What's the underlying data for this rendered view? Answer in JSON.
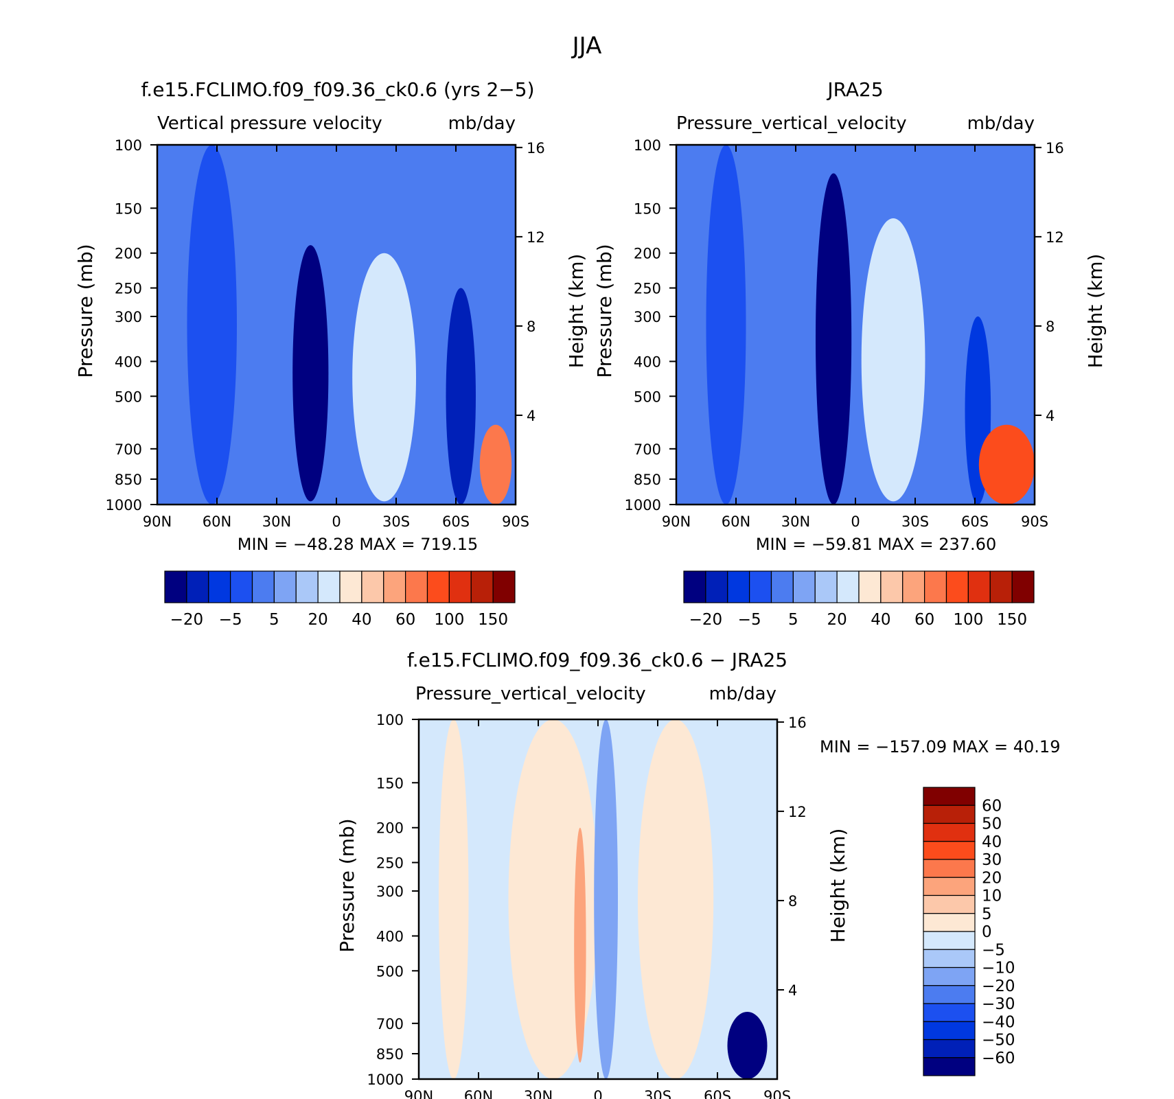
{
  "figure": {
    "season": "JJA"
  },
  "colors": {
    "main_scale": [
      "#000080",
      "#0020b8",
      "#0038e0",
      "#1c50f0",
      "#4c7cf0",
      "#7ea4f4",
      "#aac8f8",
      "#d4e8fc",
      "#fde8d4",
      "#fcc8aa",
      "#fca47c",
      "#fc784c",
      "#fc4c1c",
      "#e03010",
      "#b82008",
      "#800000"
    ],
    "diff_scale": [
      "#000080",
      "#0020b8",
      "#0038e0",
      "#1c50f0",
      "#4c7cf0",
      "#7ea4f4",
      "#aac8f8",
      "#d4e8fc",
      "#fde8d4",
      "#fcc8aa",
      "#fca47c",
      "#fc784c",
      "#fc4c1c",
      "#e03010",
      "#b82008",
      "#800000"
    ]
  },
  "chart_data": [
    {
      "type": "heatmap",
      "id": "model",
      "title": "f.e15.FCLIMO.f09_f09.36_ck0.6 (yrs 2-5)",
      "subtitle_left": "Vertical pressure velocity",
      "subtitle_right": "mb/day",
      "xlabel": "",
      "ylabel": "Pressure (mb)",
      "ylabel_right": "Height (km)",
      "x_ticks": [
        "90N",
        "60N",
        "30N",
        "0",
        "30S",
        "60S",
        "90S"
      ],
      "y_ticks": [
        100,
        150,
        200,
        250,
        300,
        400,
        500,
        700,
        850,
        1000
      ],
      "y_ticks_right": [
        16,
        12,
        8,
        4
      ],
      "y_scale": "log",
      "ylim": [
        1000,
        100
      ],
      "xlim": [
        90,
        -90
      ],
      "stats": "MIN = -48.28   MAX = 719.15",
      "colorbar_labels": [
        "-20",
        "-5",
        "5",
        "20",
        "40",
        "60",
        "100",
        "150"
      ],
      "features": [
        {
          "desc": "background",
          "level": 4
        },
        {
          "desc": "NH deeper upward band",
          "lat": [
            75,
            50
          ],
          "p": [
            100,
            1000
          ],
          "level": 3
        },
        {
          "desc": "ITCZ strong ascent",
          "lat": [
            22,
            4
          ],
          "p": [
            190,
            980
          ],
          "level": 0
        },
        {
          "desc": "SH subsidence core",
          "lat": [
            -8,
            -40
          ],
          "p": [
            200,
            980
          ],
          "level": 7
        },
        {
          "desc": "SH storm track ascent",
          "lat": [
            -55,
            -70
          ],
          "p": [
            250,
            1000
          ],
          "level": 1
        },
        {
          "desc": "Antarctic high values",
          "lat": [
            -72,
            -88
          ],
          "p": [
            600,
            1000
          ],
          "level": 11
        }
      ]
    },
    {
      "type": "heatmap",
      "id": "obs",
      "title": "JRA25",
      "subtitle_left": "Pressure_vertical_velocity",
      "subtitle_right": "mb/day",
      "xlabel": "",
      "ylabel": "Pressure (mb)",
      "ylabel_right": "Height (km)",
      "x_ticks": [
        "90N",
        "60N",
        "30N",
        "0",
        "30S",
        "60S",
        "90S"
      ],
      "y_ticks": [
        100,
        150,
        200,
        250,
        300,
        400,
        500,
        700,
        850,
        1000
      ],
      "y_ticks_right": [
        16,
        12,
        8,
        4
      ],
      "y_scale": "log",
      "ylim": [
        1000,
        100
      ],
      "xlim": [
        90,
        -90
      ],
      "stats": "MIN = -59.81   MAX = 237.60",
      "colorbar_labels": [
        "-20",
        "-5",
        "5",
        "20",
        "40",
        "60",
        "100",
        "150"
      ],
      "features": [
        {
          "desc": "background",
          "level": 4
        },
        {
          "desc": "NH deeper upward band",
          "lat": [
            75,
            55
          ],
          "p": [
            100,
            1000
          ],
          "level": 3
        },
        {
          "desc": "ITCZ strong ascent",
          "lat": [
            20,
            2
          ],
          "p": [
            120,
            1000
          ],
          "level": 0
        },
        {
          "desc": "SH subsidence core",
          "lat": [
            -3,
            -35
          ],
          "p": [
            160,
            980
          ],
          "level": 7
        },
        {
          "desc": "SH storm track ascent",
          "lat": [
            -55,
            -68
          ],
          "p": [
            300,
            1000
          ],
          "level": 2
        },
        {
          "desc": "Antarctic high values",
          "lat": [
            -62,
            -90
          ],
          "p": [
            600,
            1000
          ],
          "level": 12
        }
      ]
    },
    {
      "type": "heatmap",
      "id": "diff",
      "title": "f.e15.FCLIMO.f09_f09.36_ck0.6 - JRA25",
      "subtitle_left": "Pressure_vertical_velocity",
      "subtitle_right": "mb/day",
      "xlabel": "",
      "ylabel": "Pressure (mb)",
      "ylabel_right": "Height (km)",
      "x_ticks": [
        "90N",
        "60N",
        "30N",
        "0",
        "30S",
        "60S",
        "90S"
      ],
      "y_ticks": [
        100,
        150,
        200,
        250,
        300,
        400,
        500,
        700,
        850,
        1000
      ],
      "y_ticks_right": [
        16,
        12,
        8,
        4
      ],
      "y_scale": "log",
      "ylim": [
        1000,
        100
      ],
      "xlim": [
        90,
        -90
      ],
      "stats": "MIN = -157.09   MAX =   40.19",
      "colorbar_labels": [
        "60",
        "50",
        "40",
        "30",
        "20",
        "10",
        "5",
        "0",
        "-5",
        "-10",
        "-20",
        "-30",
        "-40",
        "-50",
        "-60"
      ],
      "features": [
        {
          "desc": "background",
          "level": 7
        },
        {
          "desc": "NH positive band",
          "lat": [
            80,
            65
          ],
          "p": [
            100,
            1000
          ],
          "level": 8
        },
        {
          "desc": "tropical positive",
          "lat": [
            45,
            0
          ],
          "p": [
            100,
            1000
          ],
          "level": 8
        },
        {
          "desc": "positive core",
          "lat": [
            12,
            6
          ],
          "p": [
            200,
            900
          ],
          "level": 10
        },
        {
          "desc": "negative equatorial",
          "lat": [
            2,
            -10
          ],
          "p": [
            100,
            1000
          ],
          "level": 5
        },
        {
          "desc": "SH positive",
          "lat": [
            -20,
            -58
          ],
          "p": [
            100,
            1000
          ],
          "level": 8
        },
        {
          "desc": "Antarctic negative",
          "lat": [
            -65,
            -85
          ],
          "p": [
            650,
            1000
          ],
          "level": 0
        }
      ]
    }
  ]
}
